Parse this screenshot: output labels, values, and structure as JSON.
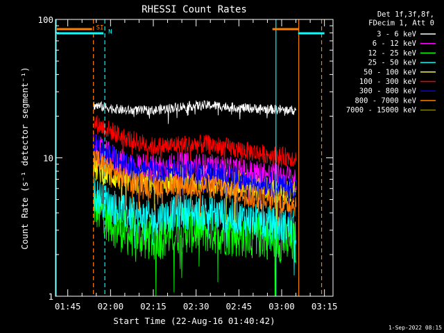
{
  "chart_data": {
    "type": "line",
    "title": "RHESSI Count Rates",
    "xlabel": "Start Time (22-Aug-16 01:40:42)",
    "ylabel": "Count Rate (s⁻¹ detector segment⁻¹)",
    "y_scale": "log",
    "ylim": [
      1,
      100
    ],
    "xlim": [
      "01:40:42",
      "03:18:00"
    ],
    "x_ticks": [
      "01:45",
      "02:00",
      "02:15",
      "02:30",
      "02:45",
      "03:00",
      "03:15"
    ],
    "y_ticks": [
      "1",
      "10",
      "100"
    ],
    "grid": false,
    "legend_position": "top-right outside",
    "legend_header": [
      "Det 1f,3f,8f,",
      "FDecim 1, Att 0"
    ],
    "timestamp": "1-Sep-2022 08:15",
    "series": [
      {
        "name": "3 - 6 keV",
        "color": "#ffffff",
        "x": [
          "01:54",
          "02:05",
          "02:15",
          "02:25",
          "02:35",
          "02:45",
          "02:55",
          "03:05"
        ],
        "values": [
          24,
          22,
          22,
          23.5,
          24,
          23,
          22.5,
          22
        ]
      },
      {
        "name": "6 - 12 keV",
        "color": "#ff00ff",
        "x": [
          "01:54",
          "02:05",
          "02:15",
          "02:25",
          "02:35",
          "02:45",
          "02:55",
          "03:05"
        ],
        "values": [
          12,
          9,
          8.5,
          8.8,
          8.5,
          8.0,
          7.5,
          7.0
        ]
      },
      {
        "name": "12 - 25 keV",
        "color": "#00ff00",
        "x": [
          "01:54",
          "02:05",
          "02:15",
          "02:25",
          "02:35",
          "02:45",
          "02:55",
          "03:05"
        ],
        "values": [
          4.5,
          2.9,
          2.6,
          3.0,
          3.0,
          2.8,
          2.7,
          2.4
        ]
      },
      {
        "name": "25 - 50 keV",
        "color": "#00ffff",
        "x": [
          "01:54",
          "02:05",
          "02:15",
          "02:25",
          "02:35",
          "02:45",
          "02:55",
          "03:05"
        ],
        "values": [
          5.5,
          4.0,
          3.6,
          4.1,
          4.0,
          3.7,
          3.4,
          3.1
        ]
      },
      {
        "name": "50 - 100 keV",
        "color": "#ffff00",
        "x": [
          "01:54",
          "02:05",
          "02:15",
          "02:25",
          "02:35",
          "02:45",
          "02:55",
          "03:05"
        ],
        "values": [
          8.5,
          7.0,
          6.8,
          7.2,
          7.0,
          6.5,
          6.0,
          5.5
        ]
      },
      {
        "name": "100 - 300 keV",
        "color": "#ff0000",
        "x": [
          "01:54",
          "02:05",
          "02:15",
          "02:25",
          "02:35",
          "02:45",
          "02:55",
          "03:05"
        ],
        "values": [
          18,
          14,
          12,
          12.5,
          12.5,
          11.5,
          10.5,
          10
        ]
      },
      {
        "name": "300 - 800 keV",
        "color": "#0000ff",
        "x": [
          "01:54",
          "02:05",
          "02:15",
          "02:25",
          "02:35",
          "02:45",
          "02:55",
          "03:05"
        ],
        "values": [
          12.5,
          8.8,
          8.0,
          8.0,
          7.8,
          7.0,
          6.5,
          6.0
        ]
      },
      {
        "name": "800 - 7000 keV",
        "color": "#ff8000",
        "x": [
          "01:54",
          "02:05",
          "02:15",
          "02:25",
          "02:35",
          "02:45",
          "02:55",
          "03:05"
        ],
        "values": [
          10,
          7.0,
          6.2,
          6.4,
          6.2,
          5.6,
          5.0,
          4.6
        ]
      },
      {
        "name": "7000 - 15000 keV",
        "color": "#808000",
        "x": [],
        "values": []
      }
    ],
    "attenuator_markers": [
      {
        "label": "SI",
        "color": "#ff8000",
        "time": "01:54",
        "end_time": "03:06"
      },
      {
        "label": "N",
        "color": "#00ffff",
        "time": "01:58",
        "end_time": "03:15"
      }
    ],
    "vertical_lines": [
      {
        "time": "01:40:42",
        "color": "#00ffff",
        "style": "solid"
      },
      {
        "time": "01:54",
        "color": "#ff8000",
        "style": "dashed"
      },
      {
        "time": "01:58",
        "color": "#00ffff",
        "style": "dashed"
      },
      {
        "time": "02:58",
        "color": "#00ffff",
        "style": "solid"
      },
      {
        "time": "03:06",
        "color": "#ff8000",
        "style": "solid"
      },
      {
        "time": "03:14",
        "color": "#ff8000",
        "style": "dashed"
      }
    ]
  }
}
